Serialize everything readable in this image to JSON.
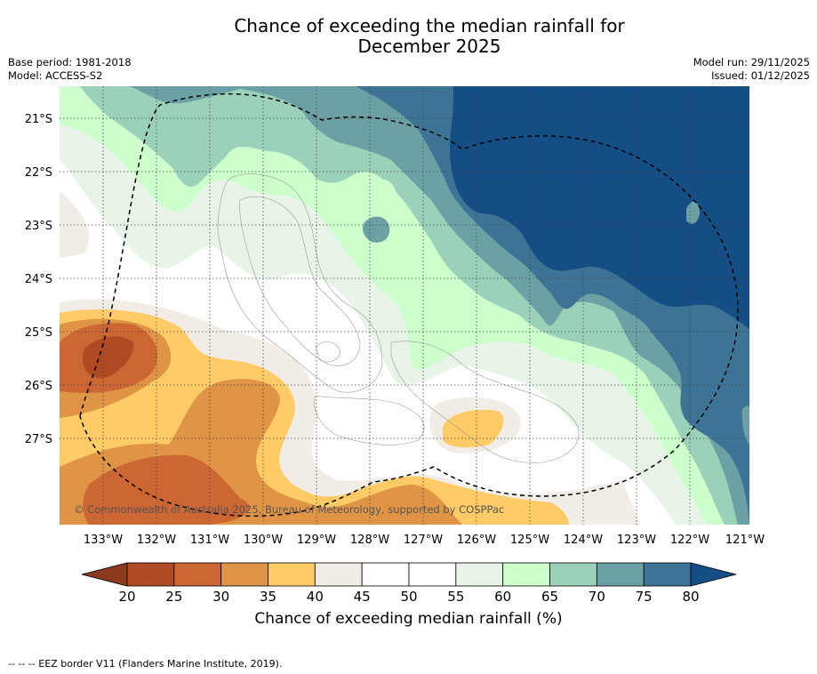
{
  "header": {
    "title_line1": "Chance of exceeding the median rainfall for",
    "title_line2": "December 2025",
    "base_period": "Base period: 1981-2018",
    "model": "Model: ACCESS-S2",
    "model_run": "Model run: 29/11/2025",
    "issued": "Issued: 01/12/2025"
  },
  "map": {
    "lat_labels": [
      "21°S",
      "22°S",
      "23°S",
      "24°S",
      "25°S",
      "26°S",
      "27°S"
    ],
    "lon_labels": [
      "133°W",
      "132°W",
      "131°W",
      "130°W",
      "129°W",
      "128°W",
      "127°W",
      "126°W",
      "125°W",
      "124°W",
      "123°W",
      "122°W",
      "121°W"
    ],
    "copyright": "© Commonwealth of Australia 2025, Bureau of Meteorology, supported by COSPPac"
  },
  "colorbar": {
    "ticks": [
      "20",
      "25",
      "30",
      "35",
      "40",
      "45",
      "50",
      "55",
      "60",
      "65",
      "70",
      "75",
      "80"
    ],
    "colors": [
      "#b04a24",
      "#cc6633",
      "#e09445",
      "#fecb66",
      "#f1ede6",
      "#ffffff",
      "#ffffff",
      "#e8f4e8",
      "#ccffcc",
      "#9bd1b9",
      "#6ba1a5",
      "#3d7496"
    ],
    "low_color": "#8b3a1e",
    "high_color": "#154e85",
    "title": "Chance of exceeding median rainfall (%)"
  },
  "footer": {
    "legend": "--  --  -- EEZ border V11 (Flanders Marine Institute, 2019)."
  }
}
